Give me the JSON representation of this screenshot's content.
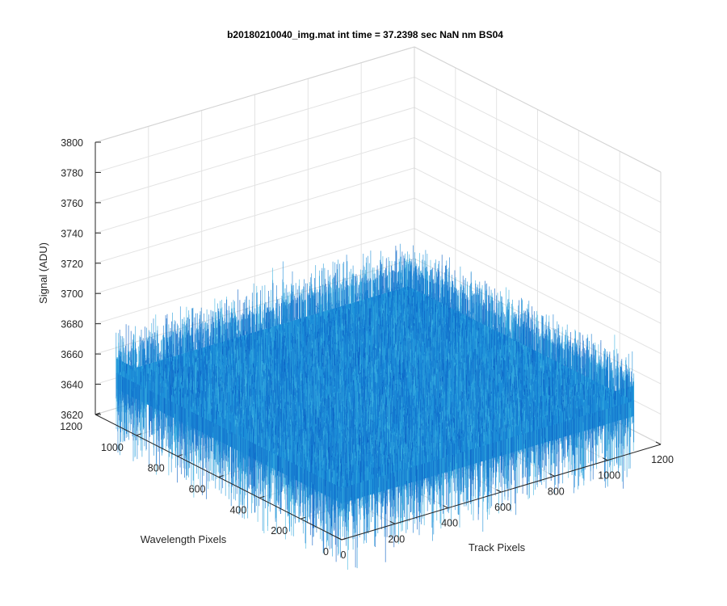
{
  "chart_data": {
    "type": "surface",
    "title": "b20180210040_img.mat int time = 37.2398 sec  NaN nm BS04",
    "xlabel": "Track Pixels",
    "ylabel": "Wavelength Pixels",
    "zlabel": "Signal (ADU)",
    "xlim": [
      0,
      1200
    ],
    "ylim": [
      0,
      1200
    ],
    "zlim": [
      3620,
      3800
    ],
    "x_ticks": [
      0,
      200,
      400,
      600,
      800,
      1000,
      1200
    ],
    "y_ticks": [
      0,
      200,
      400,
      600,
      800,
      1000,
      1200
    ],
    "z_ticks": [
      3620,
      3640,
      3660,
      3680,
      3700,
      3720,
      3740,
      3760,
      3780,
      3800
    ],
    "surface": {
      "x_range": [
        1,
        1100
      ],
      "y_range": [
        1,
        1100
      ],
      "mean_signal": 3654,
      "noise_range": [
        3600,
        3770
      ],
      "colormap": "parula"
    },
    "grid": true,
    "box": true,
    "view": "3d"
  },
  "colors": {
    "surface_base": "#1C8ED8",
    "surface_light": "#3FB4E0",
    "surface_dark": "#0A5FC4",
    "grid": "#e3e3e3",
    "axis": "#262626"
  }
}
